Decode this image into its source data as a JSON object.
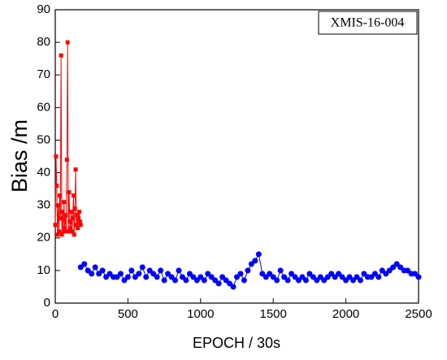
{
  "chart_data": {
    "type": "line",
    "annotation": "XMIS-16-004",
    "xlabel": "EPOCH / 30s",
    "ylabel": "Bias /m",
    "xlim": [
      0,
      2500
    ],
    "xticks": [
      0,
      500,
      1000,
      1500,
      2000,
      2500
    ],
    "ylim": [
      0,
      90
    ],
    "yticks": [
      0,
      10,
      20,
      30,
      40,
      50,
      60,
      70,
      80,
      90
    ],
    "series": [
      {
        "color": "#ff0000",
        "marker": "square",
        "x": [
          0,
          5,
          10,
          15,
          20,
          25,
          30,
          35,
          40,
          45,
          50,
          55,
          60,
          65,
          70,
          75,
          80,
          85,
          90,
          95,
          100,
          105,
          110,
          115,
          120,
          125,
          130,
          135,
          140,
          145,
          150,
          155,
          160,
          165,
          170,
          175
        ],
        "values": [
          24,
          45,
          36,
          21,
          30,
          22,
          33,
          26,
          76,
          21,
          28,
          22,
          31,
          23,
          27,
          22,
          44,
          80,
          22,
          34,
          25,
          23,
          28,
          22,
          26,
          33,
          21,
          29,
          41,
          24,
          27,
          23,
          26,
          28,
          25,
          24
        ]
      },
      {
        "color": "#0000ff",
        "marker": "circle",
        "x": [
          175,
          200,
          225,
          250,
          275,
          300,
          325,
          350,
          375,
          400,
          425,
          450,
          475,
          500,
          525,
          550,
          575,
          600,
          625,
          650,
          675,
          700,
          725,
          750,
          775,
          800,
          825,
          850,
          875,
          900,
          925,
          950,
          975,
          1000,
          1025,
          1050,
          1075,
          1100,
          1125,
          1150,
          1175,
          1200,
          1225,
          1250,
          1275,
          1300,
          1325,
          1350,
          1375,
          1400,
          1425,
          1450,
          1475,
          1500,
          1525,
          1550,
          1575,
          1600,
          1625,
          1650,
          1675,
          1700,
          1725,
          1750,
          1775,
          1800,
          1825,
          1850,
          1875,
          1900,
          1925,
          1950,
          1975,
          2000,
          2025,
          2050,
          2075,
          2100,
          2125,
          2150,
          2175,
          2200,
          2225,
          2250,
          2275,
          2300,
          2325,
          2350,
          2375,
          2400,
          2425,
          2450,
          2475,
          2500
        ],
        "values": [
          11,
          12,
          10,
          9,
          11,
          9,
          10,
          8,
          9,
          8,
          8,
          9,
          7,
          8,
          10,
          8,
          9,
          11,
          8,
          10,
          9,
          8,
          10,
          7,
          9,
          8,
          7,
          10,
          8,
          7,
          9,
          8,
          7,
          8,
          7,
          9,
          8,
          7,
          6,
          8,
          7,
          6,
          5,
          8,
          9,
          7,
          10,
          12,
          13,
          15,
          9,
          8,
          9,
          8,
          7,
          10,
          8,
          7,
          9,
          8,
          7,
          8,
          7,
          9,
          8,
          7,
          8,
          7,
          8,
          9,
          8,
          9,
          8,
          7,
          8,
          7,
          8,
          7,
          9,
          8,
          8,
          9,
          8,
          10,
          9,
          10,
          11,
          12,
          11,
          10,
          10,
          9,
          9,
          8
        ]
      }
    ]
  }
}
